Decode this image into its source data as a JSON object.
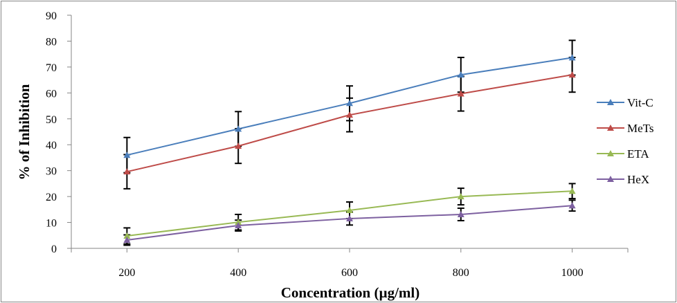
{
  "chart_data": {
    "type": "line",
    "title": "",
    "xlabel": "Concentration (µg/ml)",
    "ylabel": "% of Inhibition",
    "x": [
      200,
      400,
      600,
      800,
      1000
    ],
    "xticks": [
      "200",
      "400",
      "600",
      "800",
      "1000"
    ],
    "xlim": [
      100,
      1100
    ],
    "ylim": [
      0,
      90
    ],
    "yticks": [
      "0",
      "10",
      "20",
      "30",
      "40",
      "50",
      "60",
      "70",
      "80",
      "90"
    ],
    "grid": false,
    "legend_position": "right",
    "marker": "triangle",
    "series": [
      {
        "name": "Vit-C",
        "color": "#4A7EBB",
        "values": [
          36.0,
          46.1,
          56.0,
          67.0,
          73.6
        ],
        "error": [
          6.8,
          6.7,
          6.7,
          6.7,
          6.7
        ]
      },
      {
        "name": "MeTs",
        "color": "#BE4B48",
        "values": [
          29.6,
          39.5,
          51.5,
          59.7,
          67.0
        ],
        "error": [
          6.6,
          6.7,
          6.5,
          6.7,
          6.7
        ]
      },
      {
        "name": "ETA",
        "color": "#98B954",
        "values": [
          4.8,
          10.1,
          14.7,
          20.0,
          22.1
        ],
        "error": [
          3.1,
          3.0,
          3.2,
          3.2,
          2.9
        ]
      },
      {
        "name": "HeX",
        "color": "#7D60A0",
        "values": [
          3.2,
          8.8,
          11.5,
          13.1,
          16.5
        ],
        "error": [
          2.0,
          2.1,
          2.5,
          2.4,
          2.1
        ]
      }
    ]
  }
}
